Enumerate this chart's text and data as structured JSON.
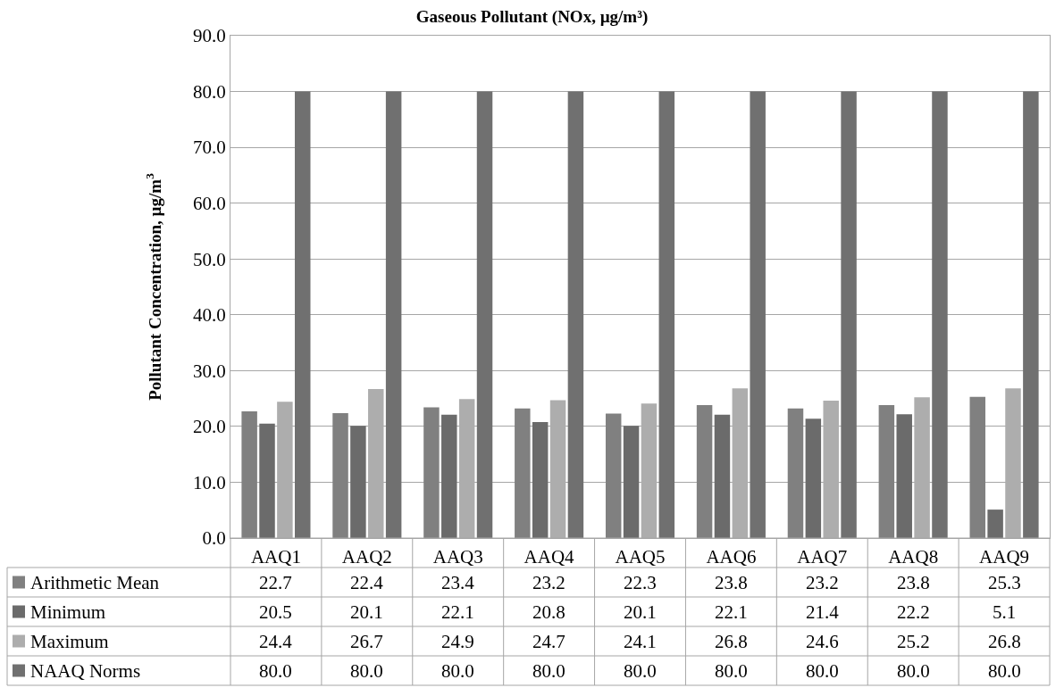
{
  "chart_data": {
    "type": "bar",
    "title": "Gaseous Pollutant (NOx, µg/m³)",
    "ylabel": "Pollutant Concentration, µg/m$^{3}$",
    "categories": [
      "AAQ1",
      "AAQ2",
      "AAQ3",
      "AAQ4",
      "AAQ5",
      "AAQ6",
      "AAQ7",
      "AAQ8",
      "AAQ9"
    ],
    "series": [
      {
        "name": "Arithmetic Mean",
        "color": "#808080",
        "values": [
          22.7,
          22.4,
          23.4,
          23.2,
          22.3,
          23.8,
          23.2,
          23.8,
          25.3
        ],
        "value_labels": [
          "22.7",
          "22.4",
          "23.4",
          "23.2",
          "22.3",
          "23.8",
          "23.2",
          "23.8",
          "25.3"
        ]
      },
      {
        "name": "Minimum",
        "color": "#6b6b6b",
        "values": [
          20.5,
          20.1,
          22.1,
          20.8,
          20.1,
          22.1,
          21.4,
          22.2,
          5.1
        ],
        "value_labels": [
          "20.5",
          "20.1",
          "22.1",
          "20.8",
          "20.1",
          "22.1",
          "21.4",
          "22.2",
          "5.1"
        ]
      },
      {
        "name": "Maximum",
        "color": "#adadad",
        "values": [
          24.4,
          26.7,
          24.9,
          24.7,
          24.1,
          26.8,
          24.6,
          25.2,
          26.8
        ],
        "value_labels": [
          "24.4",
          "26.7",
          "24.9",
          "24.7",
          "24.1",
          "26.8",
          "24.6",
          "25.2",
          "26.8"
        ]
      },
      {
        "name": "NAAQ Norms",
        "color": "#707070",
        "values": [
          80,
          80,
          80,
          80,
          80,
          80,
          80,
          80,
          80
        ],
        "value_labels": [
          "80.0",
          "80.0",
          "80.0",
          "80.0",
          "80.0",
          "80.0",
          "80.0",
          "80.0",
          "80.0"
        ]
      }
    ],
    "ylim": [
      0,
      90
    ],
    "yticks": [
      {
        "value": 0,
        "label": "0.0"
      },
      {
        "value": 10,
        "label": "10.0"
      },
      {
        "value": 20,
        "label": "20.0"
      },
      {
        "value": 30,
        "label": "30.0"
      },
      {
        "value": 40,
        "label": "40.0"
      },
      {
        "value": 50,
        "label": "50.0"
      },
      {
        "value": 60,
        "label": "60.0"
      },
      {
        "value": 70,
        "label": "70.0"
      },
      {
        "value": 80,
        "label": "80.0"
      },
      {
        "value": 90,
        "label": "90.0"
      }
    ],
    "grid": "y",
    "legend": "bottom left"
  }
}
